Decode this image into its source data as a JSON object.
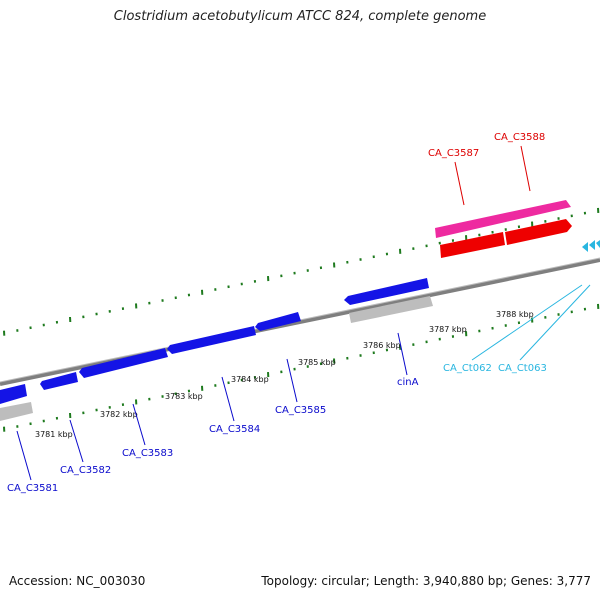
{
  "title": "Clostridium acetobutylicum ATCC 824, complete genome",
  "footer": {
    "accession": "Accession: NC_003030",
    "summary": "Topology: circular; Length: 3,940,880 bp; Genes: 3,777"
  },
  "colors": {
    "backbone": "#7f7f7f",
    "tick": "#1e7a1e",
    "cds_blue": "#1414e6",
    "cds_gray": "#bdbdbd",
    "cds_red": "#ee0000",
    "cds_pink": "#ee2aa0",
    "label_blue": "#0a0acc",
    "label_red": "#dd0000",
    "label_cyan": "#29b6e0"
  },
  "ticks": [
    {
      "label": "3781 kbp"
    },
    {
      "label": "3782 kbp"
    },
    {
      "label": "3783 kbp"
    },
    {
      "label": "3784 kbp"
    },
    {
      "label": "3785 kbp"
    },
    {
      "label": "3786 kbp"
    },
    {
      "label": "3787 kbp"
    },
    {
      "label": "3788 kbp"
    }
  ],
  "genes": [
    {
      "name": "CA_C3581",
      "color": "blue"
    },
    {
      "name": "CA_C3582",
      "color": "blue"
    },
    {
      "name": "CA_C3583",
      "color": "blue"
    },
    {
      "name": "CA_C3584",
      "color": "blue"
    },
    {
      "name": "CA_C3585",
      "color": "blue"
    },
    {
      "name": "cinA",
      "color": "blue"
    },
    {
      "name": "CA_C3587",
      "color": "red"
    },
    {
      "name": "CA_C3588",
      "color": "red"
    },
    {
      "name": "CA_Ct062",
      "color": "cyan"
    },
    {
      "name": "CA_Ct063",
      "color": "cyan"
    }
  ]
}
